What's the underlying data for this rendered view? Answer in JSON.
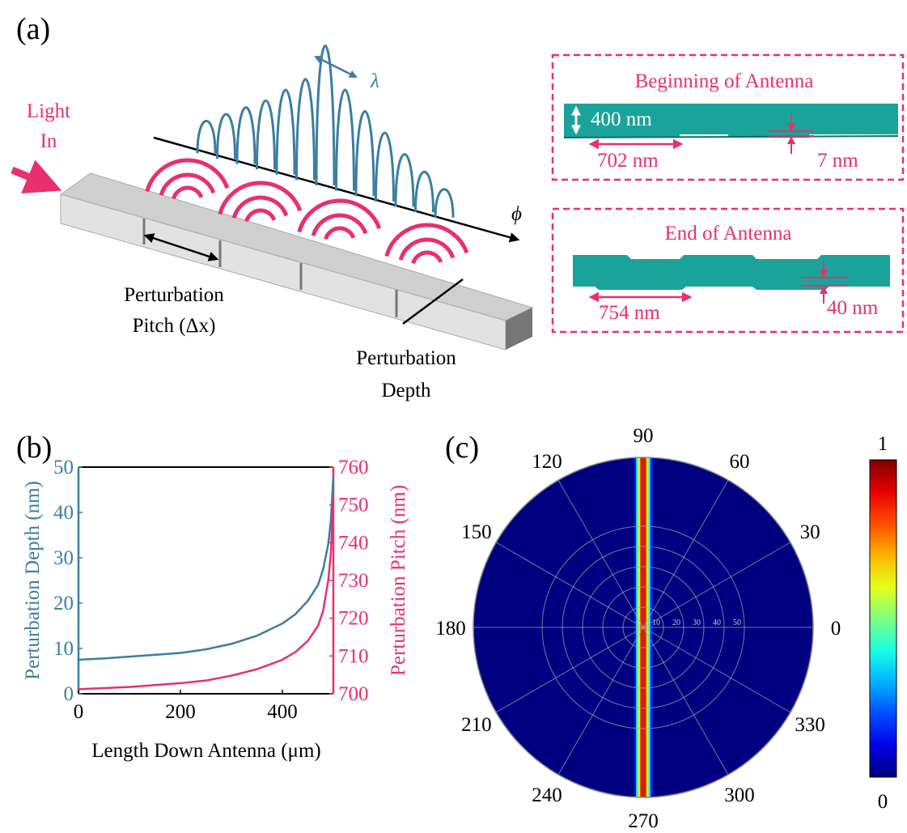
{
  "panel_a": {
    "label": "(a)",
    "light_in": [
      "Light",
      "In"
    ],
    "lambda": "λ",
    "phi": "ϕ",
    "pitch_label": [
      "Perturbation",
      "Pitch (Δx)"
    ],
    "depth_label": [
      "Perturbation",
      "Depth"
    ],
    "inset_begin": {
      "title": "Beginning of Antenna",
      "thickness": "400 nm",
      "pitch": "702 nm",
      "depth": "7 nm"
    },
    "inset_end": {
      "title": "End of Antenna",
      "pitch": "754 nm",
      "depth": "40 nm"
    }
  },
  "chart_data": [
    {
      "type": "line",
      "panel_label": "(b)",
      "x_label": "Length Down Antenna (μm)",
      "y_label": "Perturbation Depth (nm)",
      "y2_label": "Perturbation Pitch (nm)",
      "x": [
        0,
        50,
        100,
        150,
        200,
        250,
        300,
        350,
        400,
        425,
        450,
        470,
        480,
        490,
        495,
        500
      ],
      "xlim": [
        0,
        500
      ],
      "xticks": [
        0,
        200,
        400
      ],
      "ylim": [
        0,
        50
      ],
      "yticks": [
        0,
        10,
        20,
        30,
        40,
        50
      ],
      "y2lim": [
        700,
        760
      ],
      "y2ticks": [
        700,
        710,
        720,
        730,
        740,
        750,
        760
      ],
      "series": [
        {
          "color": "#3b7ea1",
          "values": [
            7.5,
            7.8,
            8.2,
            8.6,
            9.0,
            9.8,
            11,
            12.8,
            15.5,
            17.5,
            20.5,
            24,
            27.5,
            33,
            38,
            48
          ]
        },
        {
          "color": "#e8306e",
          "axis": "y2",
          "values": [
            701.2,
            701.5,
            701.8,
            702.3,
            702.8,
            703.5,
            704.8,
            706.5,
            709,
            711,
            714,
            718,
            722,
            730,
            737,
            752
          ]
        }
      ]
    },
    {
      "type": "polar_heatmap",
      "panel_label": "(c)",
      "thetaticks": [
        0,
        30,
        60,
        90,
        120,
        150,
        180,
        210,
        240,
        270,
        300,
        330
      ],
      "rlim": [
        0,
        84
      ],
      "rticks": [
        10,
        20,
        30,
        40,
        50
      ],
      "beam": {
        "x": [
          -4,
          -3,
          -2,
          -1,
          0,
          1,
          2,
          3,
          4
        ],
        "intensity": [
          0.15,
          0.4,
          0.65,
          0.85,
          1,
          0.85,
          0.65,
          0.4,
          0.15
        ]
      },
      "clim": [
        0,
        1
      ],
      "cticks": [
        0,
        1
      ],
      "colormap": "jet"
    }
  ]
}
